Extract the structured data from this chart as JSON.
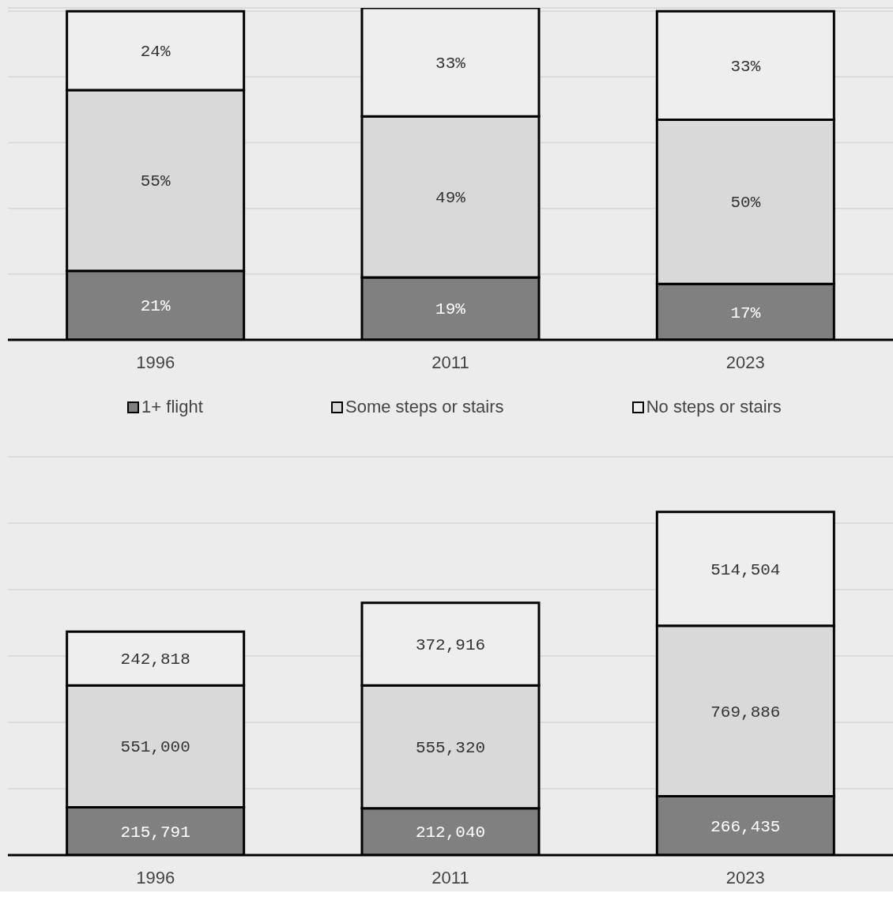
{
  "chart_data": [
    {
      "type": "bar",
      "stacked": true,
      "categories": [
        "1996",
        "2011",
        "2023"
      ],
      "ylim": [
        0,
        101
      ],
      "yticks": [
        {
          "value": 0,
          "label": null
        },
        {
          "value": 20,
          "label": null
        },
        {
          "value": 40,
          "label": null
        },
        {
          "value": 60,
          "label": null
        },
        {
          "value": 80,
          "label": null
        },
        {
          "value": 100,
          "label": null
        }
      ],
      "tick_labels": "x",
      "grid": "y",
      "legend": "bottom",
      "series": [
        {
          "name": "1+ flight",
          "color": "#808080",
          "values": [
            21,
            19,
            17
          ],
          "value_labels": [
            "21%",
            "19%",
            "17%"
          ]
        },
        {
          "name": "Some steps or stairs",
          "color": "#d9d9d9",
          "values": [
            55,
            49,
            50
          ],
          "value_labels": [
            "55%",
            "49%",
            "50%"
          ]
        },
        {
          "name": "No steps or stairs",
          "color": "#eeeeee",
          "values": [
            24,
            33,
            33
          ],
          "value_labels": [
            "24%",
            "33%",
            "33%"
          ]
        }
      ]
    },
    {
      "type": "bar",
      "stacked": true,
      "categories": [
        "1996",
        "2011",
        "2023"
      ],
      "ylim": [
        0,
        1800000
      ],
      "yticks": [
        {
          "value": 0,
          "label": null
        },
        {
          "value": 300000,
          "label": null
        },
        {
          "value": 600000,
          "label": null
        },
        {
          "value": 900000,
          "label": null
        },
        {
          "value": 1200000,
          "label": null
        },
        {
          "value": 1500000,
          "label": null
        },
        {
          "value": 1800000,
          "label": null
        }
      ],
      "tick_labels": "x",
      "grid": "y",
      "series": [
        {
          "color": "#808080",
          "values": [
            215791,
            212040,
            266435
          ],
          "value_labels": [
            "215,791",
            "212,040",
            "266,435"
          ]
        },
        {
          "color": "#d9d9d9",
          "values": [
            551000,
            555320,
            769886
          ],
          "value_labels": [
            "551,000",
            "555,320",
            "769,886"
          ]
        },
        {
          "color": "#eeeeee",
          "values": [
            242818,
            372916,
            514504
          ],
          "value_labels": [
            "242,818",
            "372,916",
            "514,504"
          ]
        }
      ]
    }
  ]
}
